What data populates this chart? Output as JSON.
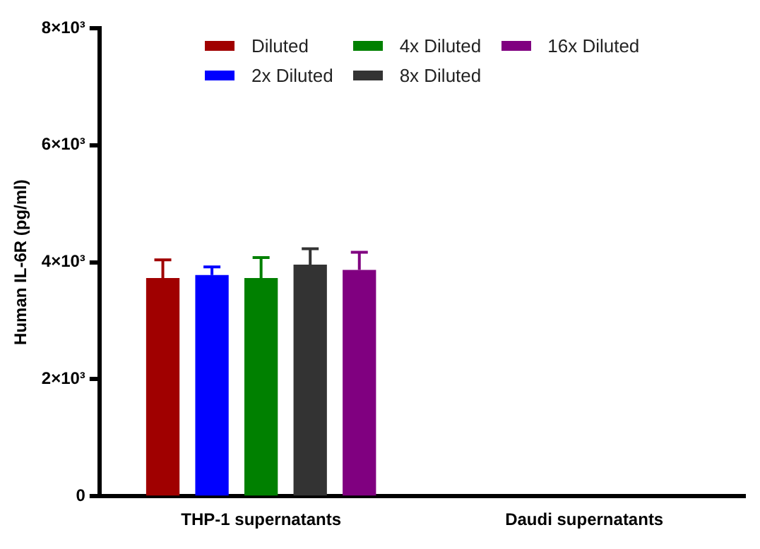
{
  "chart_data": {
    "type": "bar",
    "ylabel": "Human IL-6R (pg/ml)",
    "categories": [
      "THP-1 supernatants",
      "Daudi supernatants"
    ],
    "series": [
      {
        "name": "Diluted",
        "color": "#a00000",
        "values": [
          3730,
          null
        ],
        "errors": [
          [
            3730,
            4040
          ],
          null
        ]
      },
      {
        "name": "2x Diluted",
        "color": "#0000ff",
        "values": [
          3780,
          null
        ],
        "errors": [
          [
            3780,
            3920
          ],
          null
        ]
      },
      {
        "name": "4x Diluted",
        "color": "#008000",
        "values": [
          3730,
          null
        ],
        "errors": [
          [
            3730,
            4080
          ],
          null
        ]
      },
      {
        "name": "8x Diluted",
        "color": "#333333",
        "values": [
          3960,
          null
        ],
        "errors": [
          [
            3960,
            4230
          ],
          null
        ]
      },
      {
        "name": "16x Diluted",
        "color": "#800080",
        "values": [
          3870,
          null
        ],
        "errors": [
          [
            3870,
            4170
          ],
          null
        ]
      }
    ],
    "ylim": [
      0,
      8000
    ],
    "yticks": [
      0,
      {
        "value": 2000,
        "label": "2×10³"
      },
      {
        "value": 4000,
        "label": "4×10³"
      },
      {
        "value": 6000,
        "label": "6×10³"
      },
      {
        "value": 8000,
        "label": "8×10³"
      }
    ],
    "grid": false,
    "legend": "top"
  }
}
